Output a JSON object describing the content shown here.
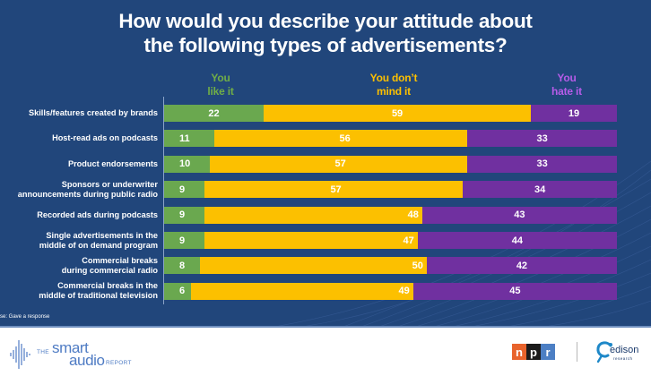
{
  "title": {
    "line1": "How would you describe your attitude about",
    "line2": "the following types of advertisements?"
  },
  "colors": {
    "background": "#21467b",
    "like": "#6aa84f",
    "dont_mind": "#fcc000",
    "hate": "#7030a0",
    "like_header": "#70ad47",
    "dont_mind_header": "#fcc000",
    "hate_header": "#b65ce8"
  },
  "base_note": "se: Gave a response",
  "footer": {
    "brand_the": "THE",
    "brand_smart": "smart",
    "brand_audio": "audio",
    "brand_report": "REPORT",
    "npr_letters": [
      "n",
      "p",
      "r"
    ],
    "npr_colors": [
      "#e8632c",
      "#1b1b1b",
      "#4c7fc4"
    ],
    "edison_name": "edison",
    "edison_sub": "research"
  },
  "chart_data": {
    "type": "bar",
    "orientation": "horizontal",
    "stacked": true,
    "percent_scale": [
      0,
      100
    ],
    "title": "How would you describe your attitude about the following types of advertisements?",
    "xlabel": "",
    "ylabel": "",
    "grid": false,
    "legend_placement": "top",
    "categories": [
      [
        "Skills/features created by brands"
      ],
      [
        "Host-read ads on podcasts"
      ],
      [
        "Product endorsements"
      ],
      [
        "Sponsors or underwriter",
        "announcements during public radio"
      ],
      [
        "Recorded ads during podcasts"
      ],
      [
        "Single advertisements in the",
        "middle of on demand program"
      ],
      [
        "Commercial breaks",
        "during commercial radio"
      ],
      [
        "Commercial breaks in the",
        "middle of traditional television"
      ]
    ],
    "series": [
      {
        "name": "You like it",
        "name_lines": [
          "You",
          "like it"
        ],
        "values": [
          22,
          11,
          10,
          9,
          9,
          9,
          8,
          6
        ]
      },
      {
        "name": "You don't mind it",
        "name_lines": [
          "You don’t",
          "mind it"
        ],
        "values": [
          59,
          56,
          57,
          57,
          48,
          47,
          50,
          49
        ]
      },
      {
        "name": "You hate it",
        "name_lines": [
          "You",
          "hate it"
        ],
        "values": [
          19,
          33,
          33,
          34,
          43,
          44,
          42,
          45
        ]
      }
    ]
  }
}
